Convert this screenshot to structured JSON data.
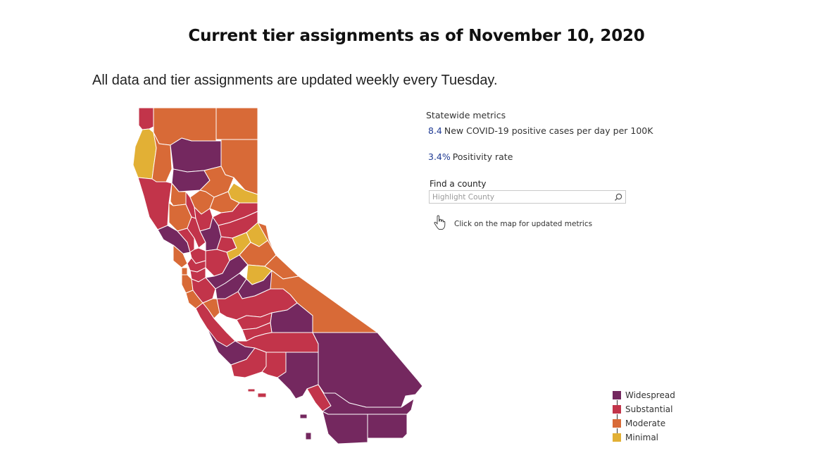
{
  "title": "Current tier assignments as of November 10, 2020",
  "subtitle": "All data and tier assignments are updated weekly every Tuesday.",
  "metrics": {
    "heading": "Statewide metrics",
    "items": [
      {
        "value": "8.4",
        "label": "New COVID-19 positive cases per day per 100K"
      },
      {
        "value": "3.4%",
        "label": "Positivity rate"
      }
    ]
  },
  "search": {
    "label": "Find a county",
    "placeholder": "Highlight County",
    "icon": "search-icon"
  },
  "hint": {
    "icon": "pointer-hand-icon",
    "text": "Click on the map for updated metrics"
  },
  "legend": {
    "items": [
      {
        "label": "Widespread",
        "color": "#74285f"
      },
      {
        "label": "Substantial",
        "color": "#c2344a"
      },
      {
        "label": "Moderate",
        "color": "#d86a37"
      },
      {
        "label": "Minimal",
        "color": "#e2b035"
      }
    ]
  },
  "tier_colors": {
    "Widespread": "#74285f",
    "Substantial": "#c2344a",
    "Moderate": "#d86a37",
    "Minimal": "#e2b035"
  }
}
